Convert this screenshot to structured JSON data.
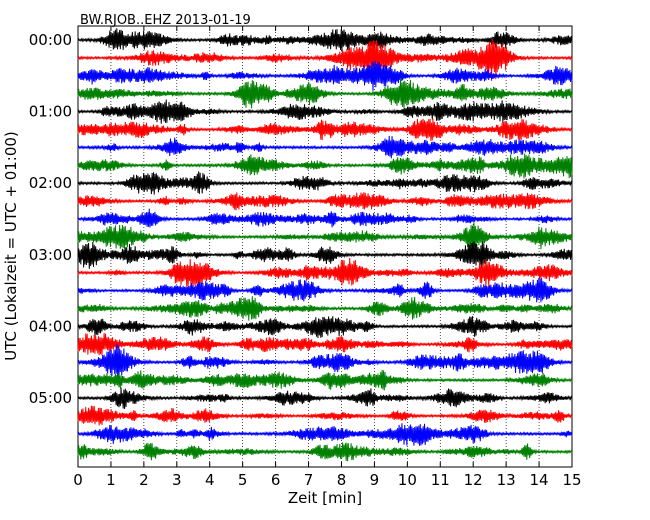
{
  "chart_data": {
    "type": "line",
    "title": "BW.RJOB..EHZ 2013-01-19",
    "xlabel": "Zeit  [min]",
    "ylabel": "UTC (Lokalzeit = UTC + 01:00)",
    "xlim": [
      0,
      15
    ],
    "x_ticks": [
      "0",
      "1",
      "2",
      "3",
      "4",
      "5",
      "6",
      "7",
      "8",
      "9",
      "10",
      "11",
      "12",
      "13",
      "14",
      "15"
    ],
    "y_ticks": [
      "00:00",
      "01:00",
      "02:00",
      "03:00",
      "04:00",
      "05:00"
    ],
    "grid": "vertical dotted lines at each minute",
    "trace_count": 24,
    "trace_interval_minutes": 15,
    "trace_colors": [
      "#000000",
      "#ff0000",
      "#0000ff",
      "#008000"
    ]
  }
}
